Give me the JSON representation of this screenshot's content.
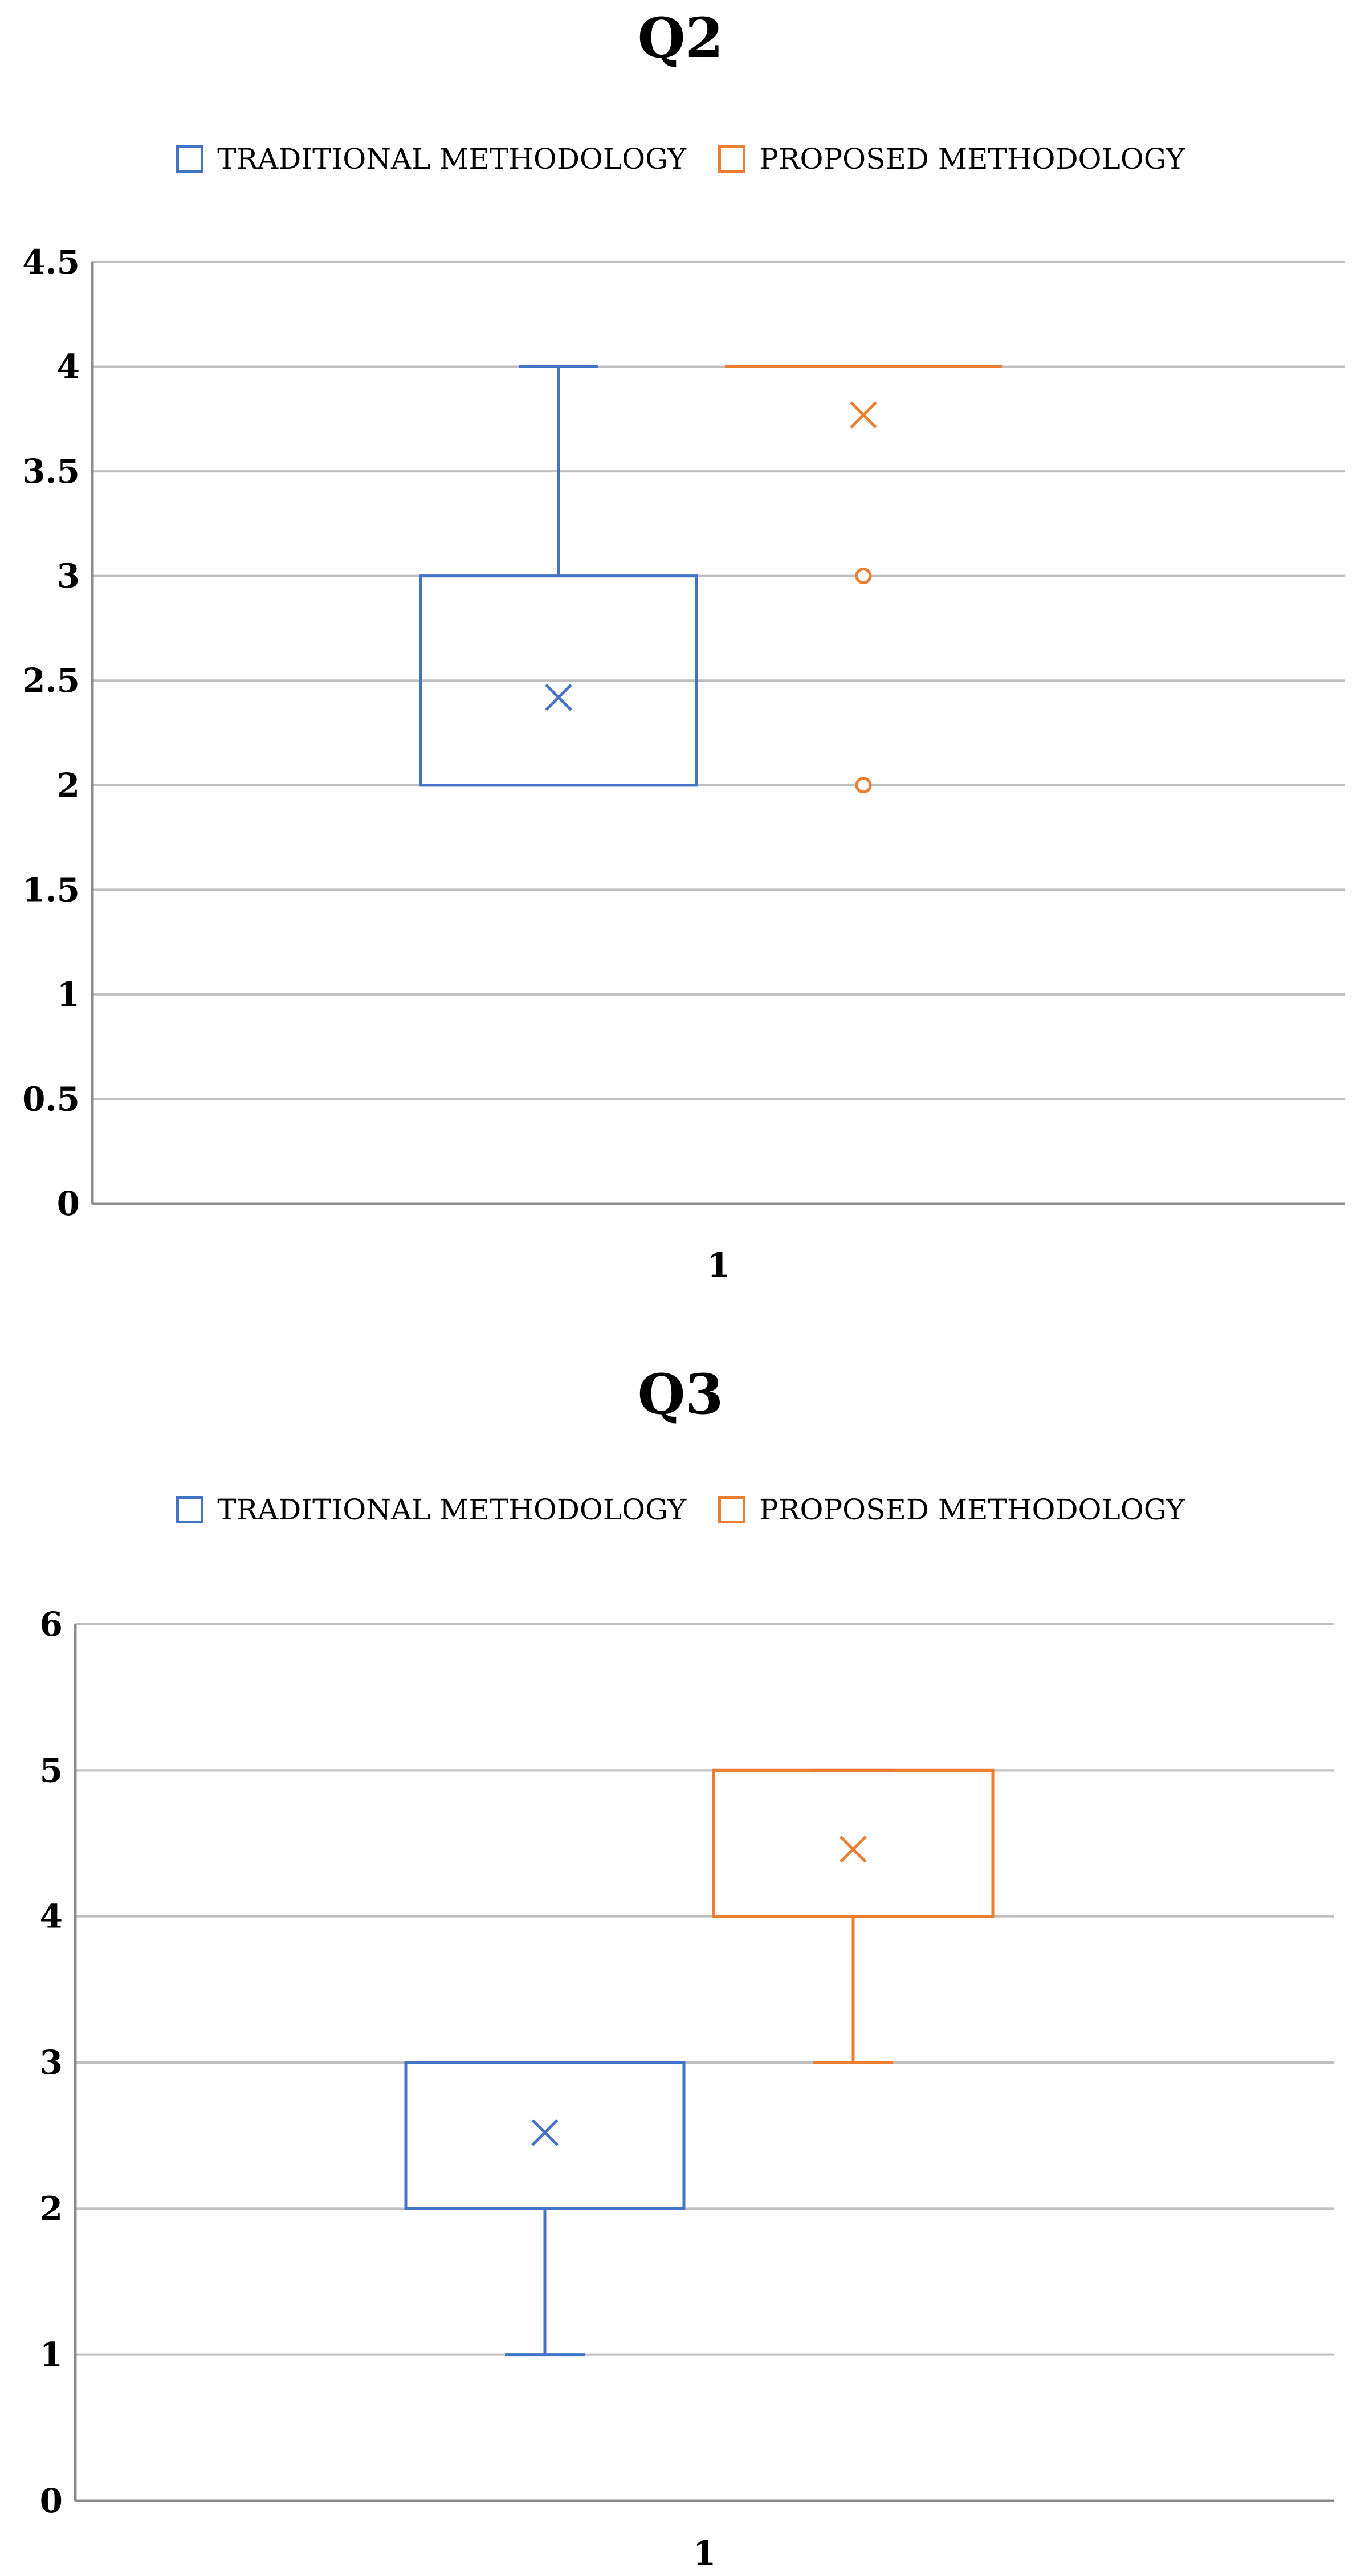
{
  "colors": {
    "series_a": "#4472C4",
    "series_b": "#ED7D31",
    "grid": "#BFBFBF",
    "axis": "#8C8C8C"
  },
  "chart_data": [
    {
      "type": "boxplot",
      "title": "Q2",
      "legend_position": "top",
      "ylim": [
        0,
        4.5
      ],
      "yticks": [
        "0",
        "0.5",
        "1",
        "1.5",
        "2",
        "2.5",
        "3",
        "3.5",
        "4",
        "4.5"
      ],
      "ytick_values": [
        0,
        0.5,
        1,
        1.5,
        2,
        2.5,
        3,
        3.5,
        4,
        4.5
      ],
      "categories": [
        "1"
      ],
      "grid": true,
      "series": [
        {
          "name": "TRADITIONAL METHODOLOGY",
          "min": 2,
          "q1": 2,
          "median": 2,
          "q3": 3,
          "max": 4,
          "mean": 2.42,
          "outliers": []
        },
        {
          "name": "PROPOSED METHODOLOGY",
          "min": 4,
          "q1": 4,
          "median": 4,
          "q3": 4,
          "max": 4,
          "mean": 3.77,
          "outliers": [
            3,
            2
          ]
        }
      ]
    },
    {
      "type": "boxplot",
      "title": "Q3",
      "legend_position": "top",
      "ylim": [
        0,
        6
      ],
      "yticks": [
        "0",
        "1",
        "2",
        "3",
        "4",
        "5",
        "6"
      ],
      "ytick_values": [
        0,
        1,
        2,
        3,
        4,
        5,
        6
      ],
      "categories": [
        "1"
      ],
      "grid": true,
      "series": [
        {
          "name": "TRADITIONAL METHODOLOGY",
          "min": 1,
          "q1": 2,
          "median": 3,
          "q3": 3,
          "max": 3,
          "mean": 2.52,
          "outliers": []
        },
        {
          "name": "PROPOSED METHODOLOGY",
          "min": 3,
          "q1": 4,
          "median": 5,
          "q3": 5,
          "max": 5,
          "mean": 4.46,
          "outliers": []
        }
      ]
    }
  ]
}
